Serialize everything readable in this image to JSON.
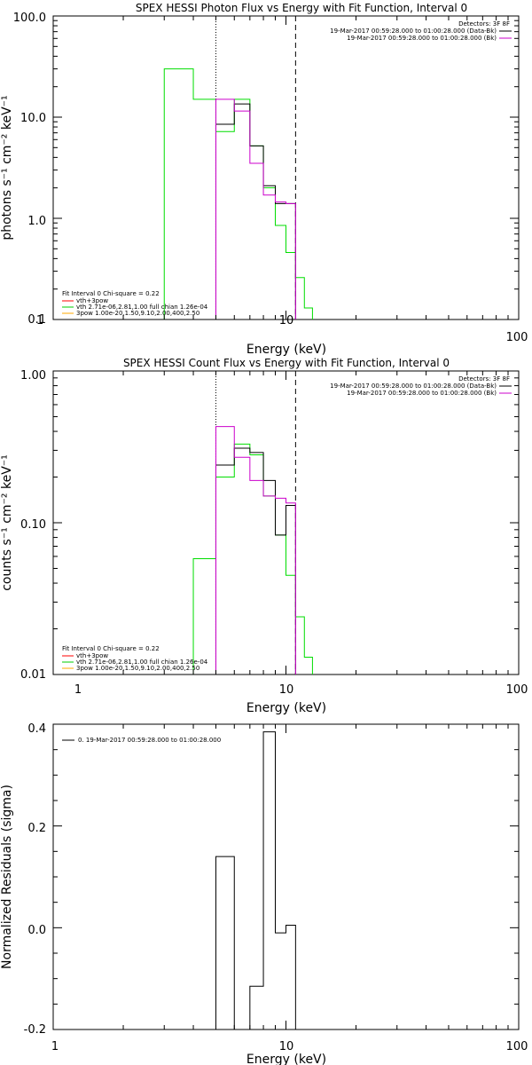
{
  "figure": {
    "panels": [
      {
        "id": "photon",
        "title": "SPEX HESSI Photon Flux vs Energy with Fit Function, Interval 0",
        "ylabel": "photons s⁻¹ cm⁻² keV⁻¹",
        "xlabel": "Energy (keV)"
      },
      {
        "id": "count",
        "title": "SPEX HESSI Count Flux vs Energy with Fit Function, Interval 0",
        "ylabel": "counts s⁻¹ cm⁻² keV⁻¹",
        "xlabel": "Energy (keV)"
      },
      {
        "id": "resid",
        "title": "",
        "ylabel": "Normalized Residuals (sigma)",
        "xlabel": "Energy (keV)"
      }
    ]
  },
  "chart_data": [
    {
      "type": "line",
      "title": "SPEX HESSI Photon Flux vs Energy with Fit Function, Interval 0",
      "xlabel": "Energy (keV)",
      "ylabel": "photons s⁻¹ cm⁻² keV⁻¹",
      "xscale": "log",
      "yscale": "log",
      "xlim": [
        1,
        100
      ],
      "ylim": [
        0.1,
        100
      ],
      "xticks": [
        "1",
        "10",
        "100"
      ],
      "yticks": [
        "0.1",
        "1.0",
        "10.0",
        "100.0"
      ],
      "vlines": [
        {
          "x": 5,
          "style": "dotted"
        },
        {
          "x": 11,
          "style": "dashed"
        }
      ],
      "legend_top_right": {
        "header": "Detectors: 3F 8F",
        "entries": [
          {
            "text": "19-Mar-2017 00:59:28.000 to 01:00:28.000 (Data-Bk)",
            "color": "#000000"
          },
          {
            "text": "19-Mar-2017 00:59:28.000 to 01:00:28.000 (Bk)",
            "color": "#cc00cc"
          }
        ]
      },
      "legend_bottom_left": {
        "header": "Fit Interval 0   Chi-square = 0.22",
        "entries": [
          {
            "text": "vth+3pow",
            "color": "#ff0000"
          },
          {
            "text": "vth 2.71e-06,2.81,1.00  full chian 1.26e-04",
            "color": "#00cc00"
          },
          {
            "text": "3pow 1.00e-20,1.50,9.10,2.00,400,2.50",
            "color": "#ffaa00"
          }
        ]
      },
      "series": [
        {
          "color": "#00dd00",
          "edges": [
            3,
            4,
            5,
            6,
            7,
            8,
            9,
            10,
            11,
            12,
            13
          ],
          "values": [
            30,
            15,
            7.2,
            15,
            5.2,
            2.0,
            0.85,
            0.46,
            0.26,
            0.13
          ]
        },
        {
          "color": "#000000",
          "edges": [
            5,
            6,
            7,
            8,
            9,
            10,
            11
          ],
          "values": [
            8.5,
            13.5,
            5.2,
            2.1,
            1.4,
            1.4
          ]
        },
        {
          "color": "#cc00cc",
          "edges": [
            5,
            6,
            7,
            8,
            9,
            10,
            11
          ],
          "values": [
            15,
            11.5,
            3.5,
            1.7,
            1.45,
            1.4
          ]
        }
      ]
    },
    {
      "type": "line",
      "title": "SPEX HESSI Count Flux vs Energy with Fit Function, Interval 0",
      "xlabel": "Energy (keV)",
      "ylabel": "counts s⁻¹ cm⁻² keV⁻¹",
      "xscale": "log",
      "yscale": "log",
      "xlim": [
        1,
        100
      ],
      "ylim": [
        0.01,
        1
      ],
      "xticks": [
        "1",
        "10",
        "100"
      ],
      "yticks": [
        "0.01",
        "0.10",
        "1.00"
      ],
      "vlines": [
        {
          "x": 5,
          "style": "dotted"
        },
        {
          "x": 11,
          "style": "dashed"
        }
      ],
      "legend_top_right": {
        "header": "Detectors: 3F 8F",
        "entries": [
          {
            "text": "19-Mar-2017 00:59:28.000 to 01:00:28.000 (Data-Bk)",
            "color": "#000000"
          },
          {
            "text": "19-Mar-2017 00:59:28.000 to 01:00:28.000 (Bk)",
            "color": "#cc00cc"
          }
        ]
      },
      "legend_bottom_left": {
        "header": "Fit Interval 0   Chi-square = 0.22",
        "entries": [
          {
            "text": "vth+3pow",
            "color": "#ff0000"
          },
          {
            "text": "vth 2.71e-06,2.81,1.00  full chian 1.26e-04",
            "color": "#00cc00"
          },
          {
            "text": "3pow 1.00e-20,1.50,9.10,2.00,400,2.50",
            "color": "#ffaa00"
          }
        ]
      },
      "series": [
        {
          "color": "#00dd00",
          "edges": [
            4,
            5,
            6,
            7,
            8,
            9,
            10,
            11,
            12,
            13
          ],
          "values": [
            0.058,
            0.2,
            0.33,
            0.28,
            0.15,
            0.083,
            0.045,
            0.024,
            0.013
          ]
        },
        {
          "color": "#000000",
          "edges": [
            5,
            6,
            7,
            8,
            9,
            10,
            11
          ],
          "values": [
            0.24,
            0.31,
            0.29,
            0.19,
            0.083,
            0.13
          ]
        },
        {
          "color": "#cc00cc",
          "edges": [
            5,
            6,
            7,
            8,
            9,
            10,
            11
          ],
          "values": [
            0.43,
            0.27,
            0.19,
            0.15,
            0.145,
            0.135
          ]
        }
      ]
    },
    {
      "type": "line",
      "title": "",
      "xlabel": "Energy (keV)",
      "ylabel": "Normalized Residuals (sigma)",
      "xscale": "log",
      "yscale": "linear",
      "xlim": [
        1,
        100
      ],
      "ylim": [
        -0.2,
        0.4
      ],
      "xticks": [
        "1",
        "10",
        "100"
      ],
      "yticks": [
        "-0.2",
        "0.0",
        "0.2",
        "0.4"
      ],
      "legend": "0. 19-Mar-2017 00:59:28.000 to 01:00:28.000",
      "series": [
        {
          "color": "#000000",
          "edges": [
            5,
            6,
            7,
            8,
            9,
            10,
            11
          ],
          "values": [
            0.14,
            -0.2,
            -0.115,
            0.385,
            -0.01,
            0.005
          ]
        }
      ]
    }
  ]
}
